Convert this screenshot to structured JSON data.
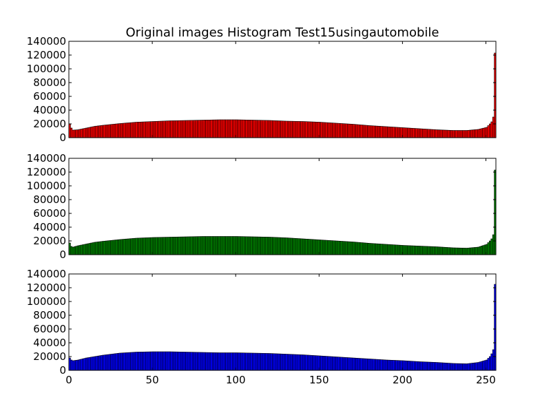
{
  "chart_data": {
    "type": "bar",
    "title": "Original images Histogram Test15usingautomobile",
    "xlim": [
      0,
      256
    ],
    "ylim": [
      0,
      140000
    ],
    "x_ticks": [
      "0",
      "50",
      "100",
      "150",
      "200",
      "250"
    ],
    "y_ticks": [
      "0",
      "20000",
      "40000",
      "60000",
      "80000",
      "100000",
      "120000",
      "140000"
    ],
    "grid": false,
    "bins": 256,
    "panels": [
      {
        "name": "red",
        "color": "#ff0000",
        "anchors": [
          [
            0,
            20000
          ],
          [
            1,
            14000
          ],
          [
            2,
            11000
          ],
          [
            5,
            11500
          ],
          [
            10,
            14000
          ],
          [
            15,
            16500
          ],
          [
            20,
            18000
          ],
          [
            30,
            20500
          ],
          [
            40,
            22500
          ],
          [
            50,
            23500
          ],
          [
            60,
            24500
          ],
          [
            70,
            25000
          ],
          [
            80,
            25500
          ],
          [
            90,
            26000
          ],
          [
            100,
            26000
          ],
          [
            110,
            25500
          ],
          [
            120,
            25000
          ],
          [
            130,
            24000
          ],
          [
            140,
            23500
          ],
          [
            150,
            22500
          ],
          [
            160,
            21000
          ],
          [
            170,
            19500
          ],
          [
            180,
            17500
          ],
          [
            190,
            16000
          ],
          [
            200,
            14500
          ],
          [
            210,
            13000
          ],
          [
            220,
            11500
          ],
          [
            230,
            10500
          ],
          [
            238,
            10500
          ],
          [
            245,
            12000
          ],
          [
            250,
            15000
          ],
          [
            252,
            20000
          ],
          [
            253,
            23000
          ],
          [
            254,
            30000
          ],
          [
            255,
            123000
          ]
        ]
      },
      {
        "name": "green",
        "color": "#008000",
        "anchors": [
          [
            0,
            17000
          ],
          [
            1,
            12000
          ],
          [
            2,
            11000
          ],
          [
            5,
            13000
          ],
          [
            10,
            15500
          ],
          [
            15,
            18000
          ],
          [
            20,
            19500
          ],
          [
            30,
            22000
          ],
          [
            40,
            24000
          ],
          [
            50,
            25000
          ],
          [
            60,
            25500
          ],
          [
            70,
            26000
          ],
          [
            80,
            26500
          ],
          [
            90,
            26500
          ],
          [
            100,
            26500
          ],
          [
            110,
            26000
          ],
          [
            120,
            25500
          ],
          [
            130,
            24500
          ],
          [
            140,
            23000
          ],
          [
            150,
            21500
          ],
          [
            160,
            20000
          ],
          [
            170,
            18500
          ],
          [
            180,
            16500
          ],
          [
            190,
            15000
          ],
          [
            200,
            13500
          ],
          [
            210,
            12500
          ],
          [
            220,
            11500
          ],
          [
            230,
            10000
          ],
          [
            238,
            9500
          ],
          [
            245,
            11000
          ],
          [
            250,
            15000
          ],
          [
            252,
            20000
          ],
          [
            253,
            23000
          ],
          [
            254,
            29000
          ],
          [
            255,
            123000
          ]
        ]
      },
      {
        "name": "blue",
        "color": "#0000ff",
        "anchors": [
          [
            0,
            18000
          ],
          [
            1,
            15000
          ],
          [
            2,
            14000
          ],
          [
            5,
            15000
          ],
          [
            10,
            18000
          ],
          [
            15,
            20000
          ],
          [
            20,
            22000
          ],
          [
            30,
            25000
          ],
          [
            40,
            26500
          ],
          [
            50,
            27000
          ],
          [
            60,
            27000
          ],
          [
            70,
            26500
          ],
          [
            80,
            26000
          ],
          [
            90,
            25500
          ],
          [
            100,
            25500
          ],
          [
            110,
            25000
          ],
          [
            120,
            24500
          ],
          [
            130,
            23500
          ],
          [
            140,
            22500
          ],
          [
            150,
            21000
          ],
          [
            160,
            19500
          ],
          [
            170,
            18000
          ],
          [
            180,
            16500
          ],
          [
            190,
            15000
          ],
          [
            200,
            14000
          ],
          [
            210,
            12500
          ],
          [
            220,
            11500
          ],
          [
            230,
            10000
          ],
          [
            238,
            9500
          ],
          [
            245,
            11500
          ],
          [
            250,
            15000
          ],
          [
            252,
            20000
          ],
          [
            253,
            24000
          ],
          [
            254,
            30000
          ],
          [
            255,
            125000
          ]
        ]
      }
    ]
  }
}
